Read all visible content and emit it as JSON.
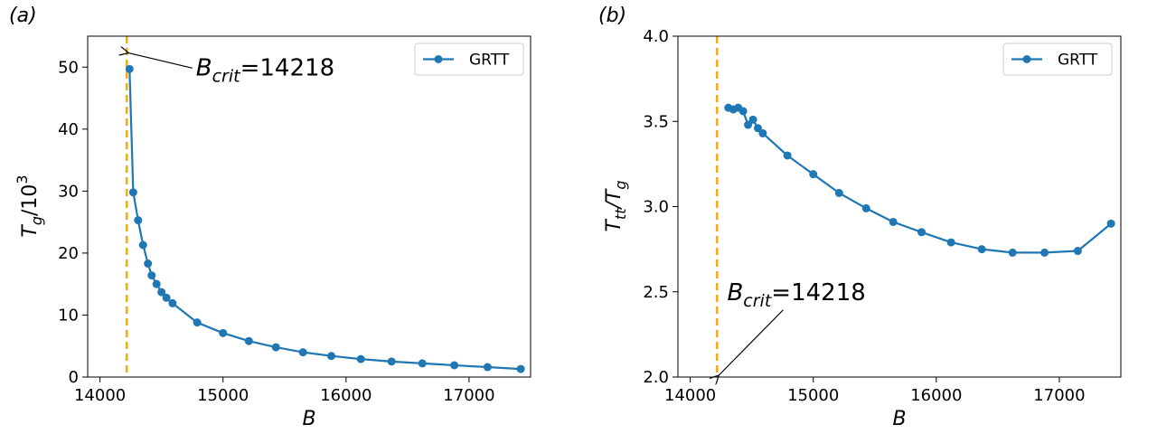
{
  "colors": {
    "series": "#1f77b4",
    "crit_line": "#ffa500",
    "axis": "#000000"
  },
  "chart_data": [
    {
      "type": "line",
      "panel_label": "(a)",
      "xlabel": "B",
      "ylabel_main": "T",
      "ylabel_sub": "g",
      "ylabel_tail": "/10",
      "ylabel_sup": "3",
      "xlim": [
        13900,
        17500
      ],
      "ylim": [
        0,
        55
      ],
      "xticks": [
        14000,
        15000,
        16000,
        17000
      ],
      "yticks": [
        0,
        10,
        20,
        30,
        40,
        50
      ],
      "legend": "GRTT",
      "legend_position": "top-right",
      "crit_value": 14218,
      "annotation": {
        "main": "B",
        "sub": "crit",
        "rest": "=14218",
        "x": 14218,
        "y": 52,
        "text_x": 14780,
        "text_y": 50
      },
      "series": [
        {
          "name": "GRTT",
          "x": [
            14240,
            14270,
            14310,
            14350,
            14390,
            14420,
            14460,
            14500,
            14540,
            14590,
            14790,
            15000,
            15210,
            15430,
            15650,
            15880,
            16120,
            16370,
            16620,
            16880,
            17150,
            17420
          ],
          "y": [
            49.7,
            29.8,
            25.3,
            21.3,
            18.3,
            16.4,
            15.0,
            13.7,
            12.8,
            11.9,
            8.8,
            7.1,
            5.8,
            4.8,
            4.0,
            3.4,
            2.9,
            2.5,
            2.2,
            1.9,
            1.6,
            1.3
          ]
        }
      ]
    },
    {
      "type": "line",
      "panel_label": "(b)",
      "xlabel": "B",
      "ylabel_main": "T",
      "ylabel_sub": "tt",
      "ylabel_tail": "/T",
      "ylabel_sub2": "g",
      "xlim": [
        13900,
        17500
      ],
      "ylim": [
        2.0,
        4.0
      ],
      "xticks": [
        14000,
        15000,
        16000,
        17000
      ],
      "yticks": [
        2.0,
        2.5,
        3.0,
        3.5,
        4.0
      ],
      "legend": "GRTT",
      "legend_position": "top-right",
      "crit_value": 14218,
      "annotation": {
        "main": "B",
        "sub": "crit",
        "rest": "=14218",
        "x": 14218,
        "y": 2.0,
        "text_x": 14300,
        "text_y": 2.5
      },
      "series": [
        {
          "name": "GRTT",
          "x": [
            14310,
            14350,
            14390,
            14430,
            14470,
            14510,
            14550,
            14590,
            14790,
            15000,
            15210,
            15430,
            15650,
            15880,
            16120,
            16370,
            16620,
            16880,
            17150,
            17420
          ],
          "y": [
            3.58,
            3.57,
            3.58,
            3.56,
            3.48,
            3.51,
            3.46,
            3.43,
            3.3,
            3.19,
            3.08,
            2.99,
            2.91,
            2.85,
            2.79,
            2.75,
            2.73,
            2.73,
            2.74,
            2.9
          ]
        }
      ]
    }
  ]
}
